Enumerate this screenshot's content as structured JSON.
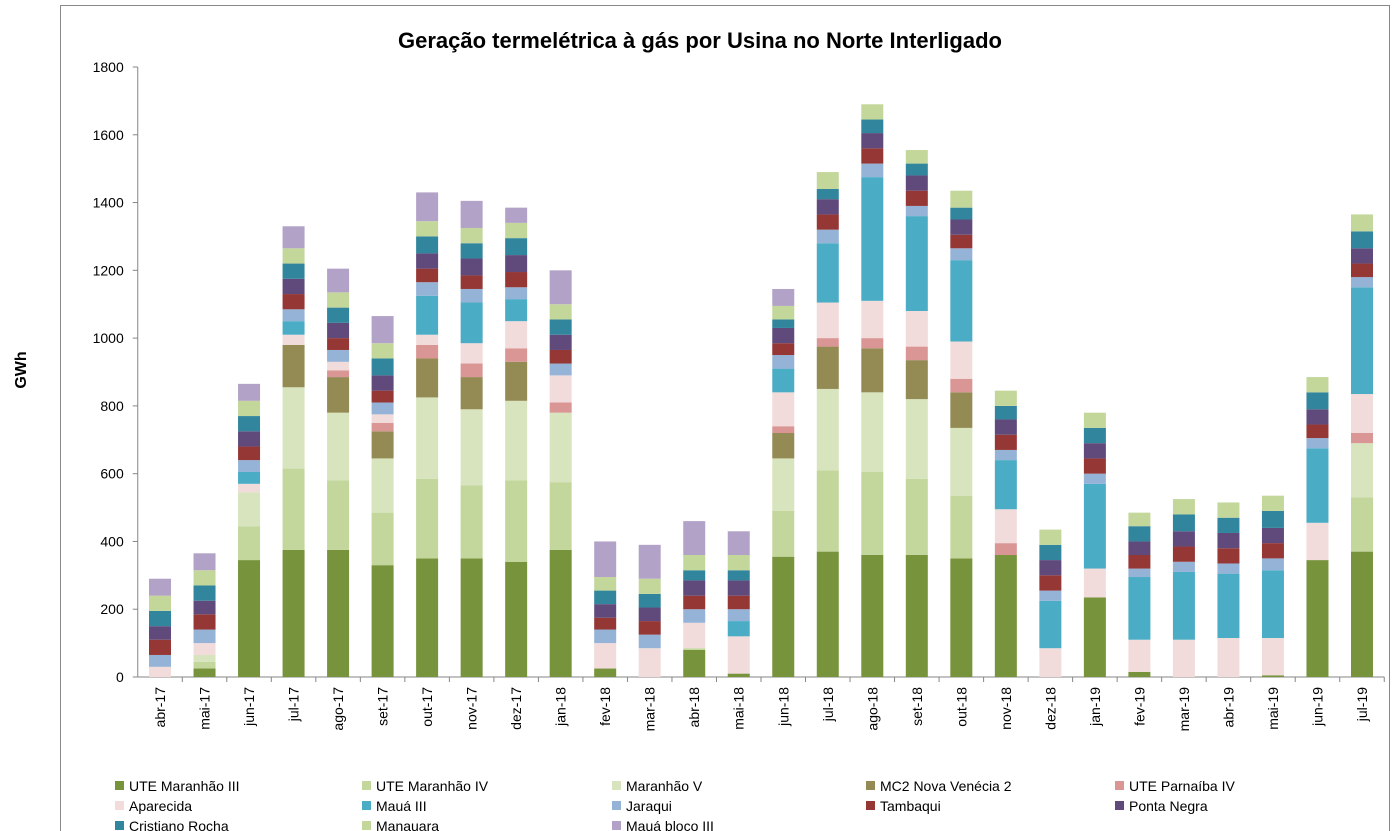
{
  "chart_data": {
    "type": "stacked-bar",
    "title": "Geração termelétrica à gás por Usina no Norte Interligado",
    "y_label": "GWh",
    "categories": [
      "abr-17",
      "mai-17",
      "jun-17",
      "jul-17",
      "ago-17",
      "set-17",
      "out-17",
      "nov-17",
      "dez-17",
      "jan-18",
      "fev-18",
      "mar-18",
      "abr-18",
      "mai-18",
      "jun-18",
      "jul-18",
      "ago-18",
      "set-18",
      "out-18",
      "nov-18",
      "dez-18",
      "jan-19",
      "fev-19",
      "mar-19",
      "abr-19",
      "mai-19",
      "jun-19",
      "jul-19"
    ],
    "ylim": [
      0,
      1800
    ],
    "yticks": [
      0,
      200,
      400,
      600,
      800,
      1000,
      1200,
      1400,
      1600,
      1800
    ],
    "grid": false,
    "legend": "bottom",
    "series": [
      {
        "name": "UTE Maranhão III",
        "color": "#77933c",
        "values": [
          0,
          25,
          345,
          375,
          375,
          330,
          350,
          350,
          340,
          375,
          25,
          0,
          80,
          10,
          355,
          370,
          360,
          360,
          350,
          360,
          0,
          235,
          15,
          0,
          0,
          5,
          345,
          370
        ]
      },
      {
        "name": "UTE Maranhão IV",
        "color": "#c3d69b",
        "values": [
          0,
          20,
          100,
          240,
          205,
          155,
          235,
          215,
          240,
          200,
          0,
          0,
          5,
          0,
          135,
          240,
          245,
          225,
          185,
          0,
          0,
          0,
          0,
          0,
          0,
          0,
          0,
          160
        ]
      },
      {
        "name": "Maranhão V",
        "color": "#d7e4bd",
        "values": [
          0,
          20,
          100,
          240,
          200,
          160,
          240,
          225,
          235,
          205,
          0,
          0,
          0,
          0,
          155,
          240,
          235,
          235,
          200,
          0,
          0,
          0,
          0,
          0,
          0,
          0,
          0,
          160
        ]
      },
      {
        "name": "MC2 Nova Venécia 2",
        "color": "#948a54",
        "values": [
          0,
          0,
          0,
          125,
          105,
          80,
          115,
          95,
          115,
          0,
          0,
          0,
          0,
          0,
          75,
          125,
          130,
          115,
          105,
          0,
          0,
          0,
          0,
          0,
          0,
          0,
          0,
          0
        ]
      },
      {
        "name": "UTE Parnaíba IV",
        "color": "#d99694",
        "values": [
          0,
          0,
          0,
          0,
          20,
          25,
          40,
          40,
          40,
          30,
          0,
          0,
          0,
          0,
          20,
          25,
          30,
          40,
          40,
          35,
          0,
          0,
          0,
          0,
          0,
          0,
          0,
          30
        ]
      },
      {
        "name": "Aparecida",
        "color": "#f2dcdb",
        "values": [
          30,
          35,
          25,
          30,
          25,
          25,
          30,
          60,
          80,
          80,
          75,
          85,
          75,
          110,
          100,
          105,
          110,
          105,
          110,
          100,
          85,
          85,
          95,
          110,
          115,
          110,
          110,
          115
        ]
      },
      {
        "name": "Mauá III",
        "color": "#4bacc6",
        "values": [
          0,
          0,
          35,
          40,
          0,
          0,
          115,
          120,
          65,
          0,
          0,
          0,
          0,
          45,
          70,
          175,
          365,
          280,
          240,
          145,
          140,
          250,
          185,
          200,
          190,
          200,
          220,
          315
        ]
      },
      {
        "name": "Jaraqui",
        "color": "#95b3d7",
        "values": [
          35,
          40,
          35,
          35,
          35,
          35,
          40,
          40,
          35,
          35,
          40,
          40,
          40,
          35,
          40,
          40,
          40,
          30,
          35,
          30,
          30,
          30,
          25,
          30,
          30,
          35,
          30,
          30
        ]
      },
      {
        "name": "Tambaqui",
        "color": "#953735",
        "values": [
          45,
          45,
          40,
          45,
          35,
          35,
          40,
          40,
          45,
          40,
          35,
          40,
          40,
          40,
          35,
          45,
          45,
          45,
          40,
          45,
          45,
          45,
          40,
          45,
          45,
          45,
          40,
          40
        ]
      },
      {
        "name": "Ponta Negra",
        "color": "#604a7b",
        "values": [
          40,
          40,
          45,
          45,
          45,
          45,
          45,
          50,
          50,
          45,
          40,
          40,
          45,
          45,
          45,
          45,
          45,
          45,
          45,
          45,
          45,
          45,
          40,
          45,
          45,
          45,
          45,
          45
        ]
      },
      {
        "name": "Cristiano Rocha",
        "color": "#31859c",
        "values": [
          45,
          45,
          45,
          45,
          45,
          50,
          50,
          45,
          50,
          45,
          40,
          40,
          30,
          30,
          25,
          30,
          40,
          35,
          35,
          40,
          45,
          45,
          45,
          50,
          45,
          50,
          50,
          50
        ]
      },
      {
        "name": "Manauara",
        "color": "#c4d79b",
        "values": [
          45,
          45,
          45,
          45,
          45,
          45,
          45,
          45,
          45,
          45,
          40,
          45,
          45,
          45,
          40,
          50,
          45,
          40,
          50,
          45,
          45,
          45,
          40,
          45,
          45,
          45,
          45,
          50
        ]
      },
      {
        "name": "Mauá bloco III",
        "color": "#b3a2c7",
        "values": [
          50,
          50,
          50,
          65,
          70,
          80,
          85,
          80,
          45,
          100,
          105,
          100,
          100,
          70,
          50,
          0,
          0,
          0,
          0,
          0,
          0,
          0,
          0,
          0,
          0,
          0,
          0,
          0
        ]
      }
    ]
  }
}
